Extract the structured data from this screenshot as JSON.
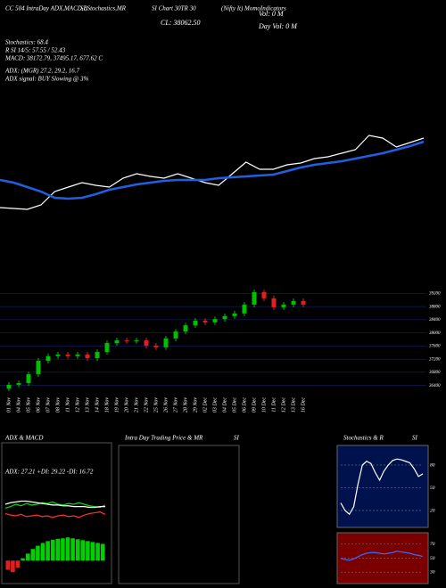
{
  "chart_data": [
    {
      "type": "line",
      "annotations": [
        "CC 504 IntraDay ADX,MACD,B",
        "SI,Stochastics,MR",
        "SI Chart 30TR 30",
        "(Nifty It) MomoIndicators",
        "CL: 38062.50",
        "Vol: 0  M",
        "Day Vol: 0  M",
        "Stochastics: 68.4",
        "R SI 14/5: 57.55 / 52.43",
        "MACD: 38172.79, 37495.17, 677.62  C",
        "ADX: (MGR) 27.2, 29.2, 16.7",
        "ADX signal: BUY Slowing @ 3%"
      ],
      "ylim": [
        50,
        160
      ],
      "series": [
        {
          "color": "#ffffff",
          "values": [
            67,
            66,
            65,
            70,
            85,
            90,
            95,
            92,
            90,
            100,
            105,
            102,
            100,
            105,
            100,
            95,
            92,
            105,
            118,
            110,
            110,
            115,
            117,
            122,
            124,
            128,
            132,
            148,
            145,
            135,
            140,
            145
          ]
        },
        {
          "color": "#1f5fe0",
          "values": [
            98,
            95,
            90,
            85,
            78,
            77,
            78,
            82,
            87,
            90,
            93,
            95,
            97,
            98,
            98,
            98,
            100,
            101,
            102,
            103,
            104,
            108,
            112,
            115,
            117,
            119,
            122,
            125,
            128,
            132,
            136,
            141
          ]
        }
      ]
    },
    {
      "type": "candlestick",
      "up_color": "#00c000",
      "down_color": "#e02020",
      "categories": [
        "01 Nov",
        "04 Nov",
        "05 Nov",
        "06 Nov",
        "07 Nov",
        "08 Nov",
        "11 Nov",
        "12 Nov",
        "13 Nov",
        "14 Nov",
        "18 Nov",
        "19 Nov",
        "20 Nov",
        "21 Nov",
        "22 Nov",
        "25 Nov",
        "26 Nov",
        "27 Nov",
        "28 Nov",
        "29 Nov",
        "02 Dec",
        "03 Dec",
        "04 Dec",
        "05 Dec",
        "06 Dec",
        "09 Dec",
        "10 Dec",
        "11 Dec",
        "12 Dec",
        "13 Dec",
        "16 Dec"
      ],
      "open": [
        36300,
        36420,
        36470,
        36740,
        37150,
        37290,
        37340,
        37290,
        37340,
        37230,
        37420,
        37690,
        37770,
        37750,
        37770,
        37610,
        37560,
        37830,
        38040,
        38230,
        38370,
        38320,
        38420,
        38510,
        38590,
        38860,
        39240,
        39050,
        38780,
        38860,
        38970
      ],
      "high": [
        36500,
        36550,
        36820,
        37230,
        37370,
        37420,
        37420,
        37420,
        37420,
        37500,
        37770,
        37850,
        37850,
        37850,
        37850,
        37690,
        37910,
        38120,
        38310,
        38450,
        38450,
        38500,
        38590,
        38670,
        38940,
        39320,
        39320,
        39130,
        38940,
        39050,
        39050
      ],
      "low": [
        36220,
        36340,
        36390,
        36660,
        37070,
        37210,
        37210,
        37210,
        37150,
        37150,
        37340,
        37610,
        37670,
        37670,
        37530,
        37480,
        37480,
        37750,
        37960,
        38150,
        38240,
        38240,
        38340,
        38430,
        38510,
        38780,
        38970,
        38700,
        38700,
        38780,
        38780
      ],
      "close": [
        36420,
        36470,
        36740,
        37150,
        37290,
        37340,
        37290,
        37340,
        37230,
        37420,
        37690,
        37770,
        37750,
        37770,
        37610,
        37560,
        37830,
        38040,
        38230,
        38370,
        38320,
        38420,
        38510,
        38590,
        38860,
        39240,
        39050,
        38780,
        38860,
        38970,
        38860
      ],
      "ylim": [
        36200,
        39400
      ],
      "yticks": [
        36400,
        36800,
        37200,
        37600,
        38000,
        38400,
        38800,
        39200
      ],
      "grid": true
    },
    {
      "type": "line",
      "title": "ADX  & MACD",
      "annotations": [
        "ADX: 27.21  +DI: 29.22  -DI: 16.72"
      ],
      "ylim": [
        0,
        60
      ],
      "series": [
        {
          "color": "#00e000",
          "values": [
            25,
            27,
            30,
            28,
            31,
            29,
            30,
            32,
            31,
            33,
            30,
            29,
            31,
            30,
            32,
            30,
            28,
            27,
            26,
            29
          ]
        },
        {
          "color": "#ff3030",
          "values": [
            18,
            16,
            15,
            17,
            14,
            15,
            16,
            14,
            15,
            13,
            15,
            16,
            14,
            15,
            13,
            16,
            18,
            19,
            20,
            17
          ]
        },
        {
          "color": "#ffffff",
          "values": [
            30,
            32,
            33,
            34,
            34,
            33,
            32,
            31,
            30,
            29,
            29,
            28,
            28,
            27,
            27,
            27,
            26,
            26,
            27,
            27
          ]
        }
      ]
    },
    {
      "type": "bar",
      "ylim": [
        -400,
        600
      ],
      "up_color": "#00d000",
      "down_color": "#e02020",
      "values": [
        -200,
        -250,
        -150,
        50,
        150,
        250,
        320,
        380,
        420,
        450,
        470,
        480,
        500,
        480,
        460,
        440,
        420,
        400,
        380,
        360
      ]
    },
    {
      "type": "empty",
      "title": "Intra  Day Trading Price  & MR",
      "subtitle": "SI"
    },
    {
      "type": "line",
      "title": "Stochastics & R",
      "subtitle": "SI",
      "ylim": [
        0,
        100
      ],
      "yticks": [
        20,
        50,
        80
      ],
      "series": [
        {
          "color": "#ffffff",
          "values": [
            30,
            20,
            15,
            25,
            55,
            80,
            85,
            82,
            70,
            60,
            72,
            80,
            86,
            88,
            87,
            85,
            83,
            75,
            65,
            68.4
          ]
        }
      ]
    },
    {
      "type": "line",
      "ylim": [
        20,
        80
      ],
      "yticks": [
        30,
        50,
        70
      ],
      "series": [
        {
          "color": "#3a6cff",
          "values": [
            50,
            48,
            47,
            49,
            52,
            55,
            57,
            58,
            58,
            57,
            56,
            57,
            58,
            60,
            59,
            58,
            57,
            55,
            54,
            52.43
          ]
        }
      ]
    }
  ]
}
